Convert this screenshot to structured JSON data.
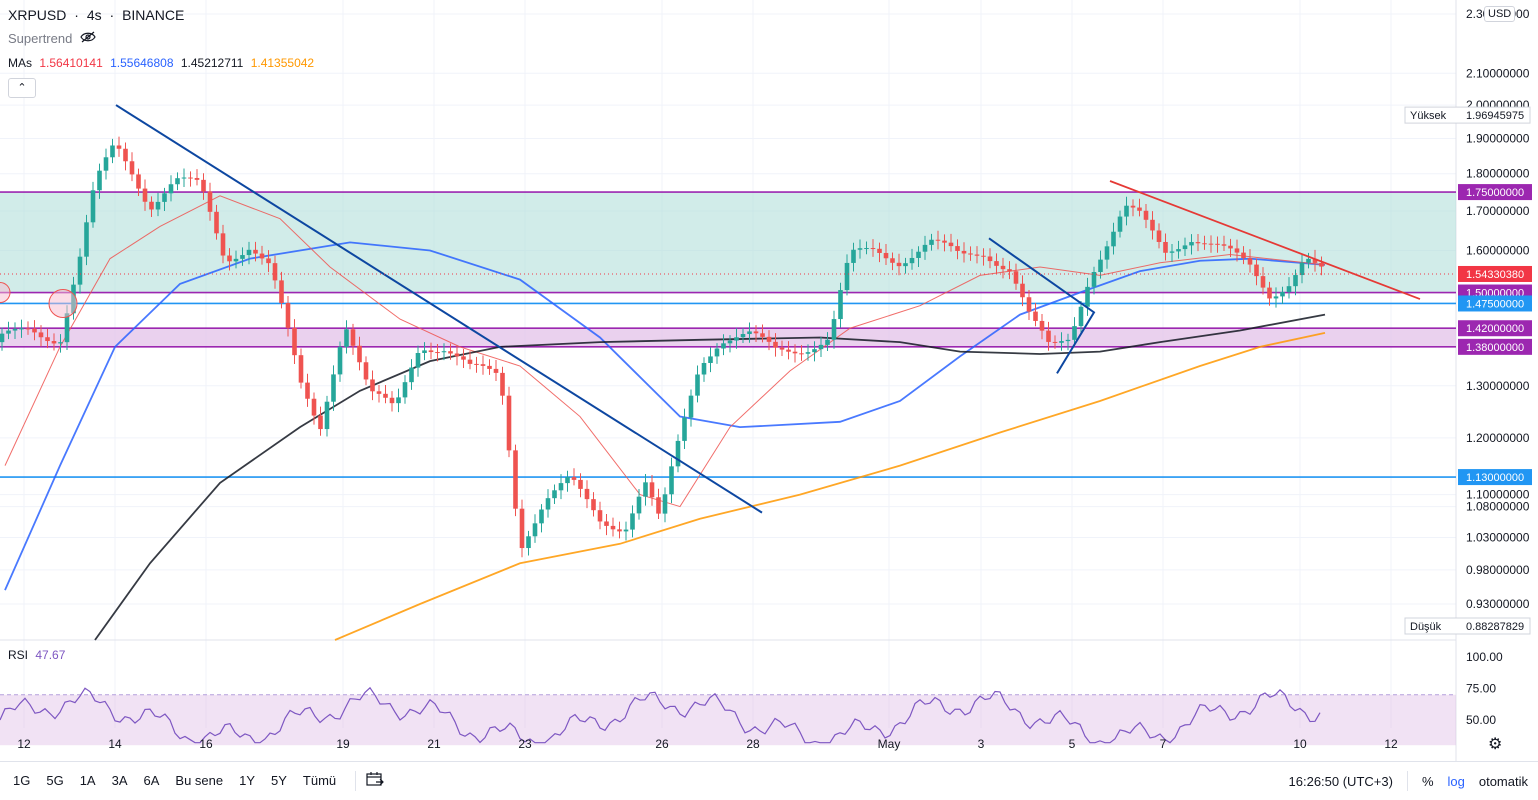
{
  "header": {
    "symbol": "XRPUSD",
    "sep1": "·",
    "interval": "4s",
    "sep2": "·",
    "exchange": "BINANCE",
    "supertrend_label": "Supertrend",
    "ma_label": "MAs",
    "ma_values": [
      "1.56410141",
      "1.55646808",
      "1.45212711",
      "1.41355042"
    ],
    "collapse_glyph": "⌃"
  },
  "colors": {
    "up": "#26a69a",
    "down": "#ef5350",
    "ma20": "#ef5350",
    "ma50": "#2962ff",
    "ma100": "#131722",
    "ma200": "#ff9800",
    "resistance_line": "#0d47a1",
    "zone_green": "#b2dfdb",
    "zone_purple": "#e1bee7",
    "level_purple": "#9c27b0",
    "level_blue": "#2196f3",
    "rsi": "#7e57c2",
    "price_tag": "#f23645"
  },
  "price_axis": {
    "currency": "USD",
    "ticks": [
      "2.30000000",
      "2.10000000",
      "2.00000000",
      "1.90000000",
      "1.80000000",
      "1.70000000",
      "1.60000000",
      "1.50000000",
      "1.30000000",
      "1.20000000",
      "1.10000000",
      "1.08000000",
      "1.03000000",
      "0.98000000",
      "0.93000000"
    ],
    "high_label": "Yüksek",
    "high_value": "1.96945975",
    "low_label": "Düşük",
    "low_value": "0.88287829",
    "last_price": "1.54330380",
    "level_tags": [
      "1.75000000",
      "1.50000000",
      "1.47500000",
      "1.42000000",
      "1.38000000",
      "1.13000000"
    ]
  },
  "rsi": {
    "label": "RSI",
    "value": "47.67",
    "ticks": [
      "100.00",
      "75.00",
      "50.00"
    ]
  },
  "chart_data": {
    "type": "candlestick",
    "x_ticks": [
      "12",
      "14",
      "16",
      "19",
      "21",
      "23",
      "26",
      "28",
      "May",
      "3",
      "5",
      "7",
      "10",
      "12"
    ],
    "y_axis_scale": "log",
    "ylim": [
      0.88,
      2.35
    ],
    "horizontal_levels": [
      1.75,
      1.5,
      1.475,
      1.42,
      1.38,
      1.13
    ],
    "zones": [
      {
        "from": 1.5,
        "to": 1.75,
        "color": "green"
      },
      {
        "from": 1.38,
        "to": 1.42,
        "color": "purple"
      }
    ],
    "last_price": 1.5433038,
    "high": 1.96945975,
    "low": 0.88287829,
    "rsi_last": 47.67,
    "ma_last": [
      1.56410141,
      1.55646808,
      1.45212711,
      1.41355042
    ]
  },
  "bottom_bar": {
    "ranges": [
      "1G",
      "5G",
      "1A",
      "3A",
      "6A",
      "Bu sene",
      "1Y",
      "5Y",
      "Tümü"
    ],
    "time": "16:26:50 (UTC+3)",
    "percent": "%",
    "log": "log",
    "auto": "otomatik"
  }
}
